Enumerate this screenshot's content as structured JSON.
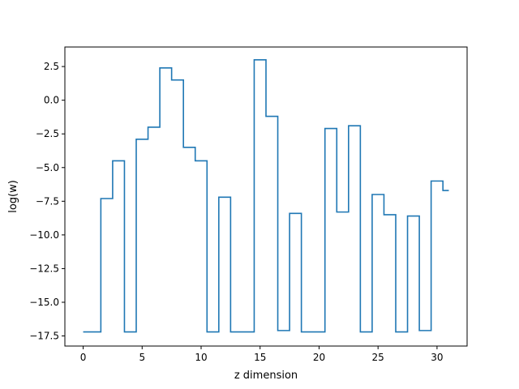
{
  "chart_data": {
    "type": "line",
    "drawstyle": "steps-mid",
    "title": "",
    "xlabel": "z dimension",
    "ylabel": "log(w)",
    "xlim": [
      -1.55,
      32.55
    ],
    "ylim": [
      -18.25,
      3.95
    ],
    "xticks": [
      0,
      5,
      10,
      15,
      20,
      25,
      30
    ],
    "yticks": [
      -17.5,
      -15.0,
      -12.5,
      -10.0,
      -7.5,
      -5.0,
      -2.5,
      0.0,
      2.5
    ],
    "ytick_labels": [
      "−17.5",
      "−15.0",
      "−12.5",
      "−10.0",
      "−7.5",
      "−5.0",
      "−2.5",
      "0.0",
      "2.5"
    ],
    "grid": false,
    "series": [
      {
        "color": "#1f77b4",
        "x": [
          0,
          1,
          2,
          3,
          4,
          5,
          6,
          7,
          8,
          9,
          10,
          11,
          12,
          13,
          14,
          15,
          16,
          17,
          18,
          19,
          20,
          21,
          22,
          23,
          24,
          25,
          26,
          27,
          28,
          29,
          30,
          31
        ],
        "values": [
          -17.2,
          -17.2,
          -7.3,
          -4.5,
          -17.2,
          -2.9,
          -2.0,
          2.4,
          1.5,
          -3.5,
          -4.5,
          -17.2,
          -7.2,
          -17.2,
          -17.2,
          3.0,
          -1.2,
          -17.1,
          -8.4,
          -17.2,
          -17.2,
          -2.1,
          -8.3,
          -1.9,
          -17.2,
          -7.0,
          -8.5,
          -17.2,
          -8.6,
          -17.1,
          -6.0,
          -6.7
        ]
      }
    ]
  }
}
